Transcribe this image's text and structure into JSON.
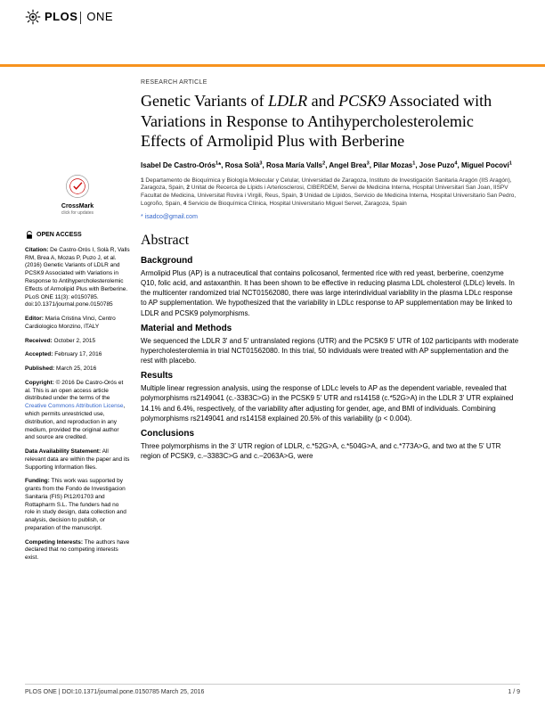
{
  "journal": {
    "logo_plos": "PLOS",
    "logo_one": "ONE"
  },
  "article_type": "RESEARCH ARTICLE",
  "title_html": "Genetic Variants of <em>LDLR</em> and <em>PCSK9</em> Associated with Variations in Response to Antihypercholesterolemic Effects of Armolipid Plus with Berberine",
  "authors_html": "Isabel De Castro-Orós<sup>1</sup>*, Rosa Solà<sup>3</sup>, Rosa María Valls<sup>2</sup>, Angel Brea<sup>3</sup>, Pilar Mozas<sup>1</sup>, Jose Puzo<sup>4</sup>, Miguel Pocoví<sup>1</sup>",
  "affiliations_html": "<b>1</b> Departamento de Bioquímica y Biología Molecular y Celular, Universidad de Zaragoza, Instituto de Investigación Sanitaria Aragón (IIS Aragón), Zaragoza, Spain, <b>2</b> Unitat de Recerca de Lípids i Arteriosclerosi, CIBERDEM, Servei de Medicina Interna, Hospital Universitari San Joan, IISPV Facultat de Medicina, Universitat Rovira i Virgili, Reus, Spain, <b>3</b> Unidad de Lípidos, Servicio de Medicina Interna, Hospital Universitario San Pedro, Logroño, Spain, <b>4</b> Servicio de Bioquímica Clínica, Hospital Universitario Miguel Servet, Zaragoza, Spain",
  "corresponding": "* isadco@gmail.com",
  "abstract_heading": "Abstract",
  "sections": {
    "background": {
      "head": "Background",
      "text": "Armolipid Plus (AP) is a nutraceutical that contains policosanol, fermented rice with red yeast, berberine, coenzyme Q10, folic acid, and astaxanthin. It has been shown to be effective in reducing plasma LDL cholesterol (LDLc) levels. In the multicenter randomized trial NCT01562080, there was large interindividual variability in the plasma LDLc response to AP supplementation. We hypothesized that the variability in LDLc response to AP supplementation may be linked to LDLR and PCSK9 polymorphisms."
    },
    "methods": {
      "head": "Material and Methods",
      "text": "We sequenced the LDLR 3' and 5' untranslated regions (UTR) and the PCSK9 5' UTR of 102 participants with moderate hypercholesterolemia in trial NCT01562080. In this trial, 50 individuals were treated with AP supplementation and the rest with placebo."
    },
    "results": {
      "head": "Results",
      "text": "Multiple linear regression analysis, using the response of LDLc levels to AP as the dependent variable, revealed that polymorphisms rs2149041 (c.-3383C>G) in the PCSK9 5' UTR and rs14158 (c.*52G>A) in the LDLR 3' UTR explained 14.1% and 6.4%, respectively, of the variability after adjusting for gender, age, and BMI of individuals. Combining polymorphisms rs2149041 and rs14158 explained 20.5% of this variability (p < 0.004)."
    },
    "conclusions": {
      "head": "Conclusions",
      "text": "Three polymorphisms in the 3' UTR region of LDLR, c.*52G>A, c.*504G>A, and c.*773A>G, and two at the 5' UTR region of PCSK9, c.–3383C>G and c.–2063A>G, were"
    }
  },
  "sidebar": {
    "crossmark": "CrossMark",
    "crossmark_sub": "click for updates",
    "open_access": "OPEN ACCESS",
    "citation_label": "Citation:",
    "citation": " De Castro-Orós I, Solà R, Valls RM, Brea A, Mozas P, Puzo J, et al. (2016) Genetic Variants of LDLR and PCSK9 Associated with Variations in Response to Antihypercholesterolemic Effects of Armolipid Plus with Berberine. PLoS ONE 11(3): e0150785. doi:10.1371/journal.pone.0150785",
    "editor_label": "Editor:",
    "editor": " Maria Cristina Vinci, Centro Cardiologico Monzino, ITALY",
    "received_label": "Received:",
    "received": " October 2, 2015",
    "accepted_label": "Accepted:",
    "accepted": " February 17, 2016",
    "published_label": "Published:",
    "published": " March 25, 2016",
    "copyright_label": "Copyright:",
    "copyright_pre": " © 2016 De Castro-Orós et al. This is an open access article distributed under the terms of the ",
    "cc_link": "Creative Commons Attribution License",
    "copyright_post": ", which permits unrestricted use, distribution, and reproduction in any medium, provided the original author and source are credited.",
    "data_label": "Data Availability Statement:",
    "data": " All relevant data are within the paper and its Supporting Information files.",
    "funding_label": "Funding:",
    "funding": " This work was supported by grants from the Fondo de Investigacion Sanitaria (FIS) PI12/01703 and Rottapharm S.L. The funders had no role in study design, data collection and analysis, decision to publish, or preparation of the manuscript.",
    "competing_label": "Competing Interests:",
    "competing": " The authors have declared that no competing interests exist."
  },
  "footer": {
    "left": "PLOS ONE | DOI:10.1371/journal.pone.0150785   March 25, 2016",
    "right": "1 / 9"
  },
  "colors": {
    "accent": "#f7931e",
    "link": "#3366cc",
    "text": "#000000",
    "muted": "#333333"
  }
}
